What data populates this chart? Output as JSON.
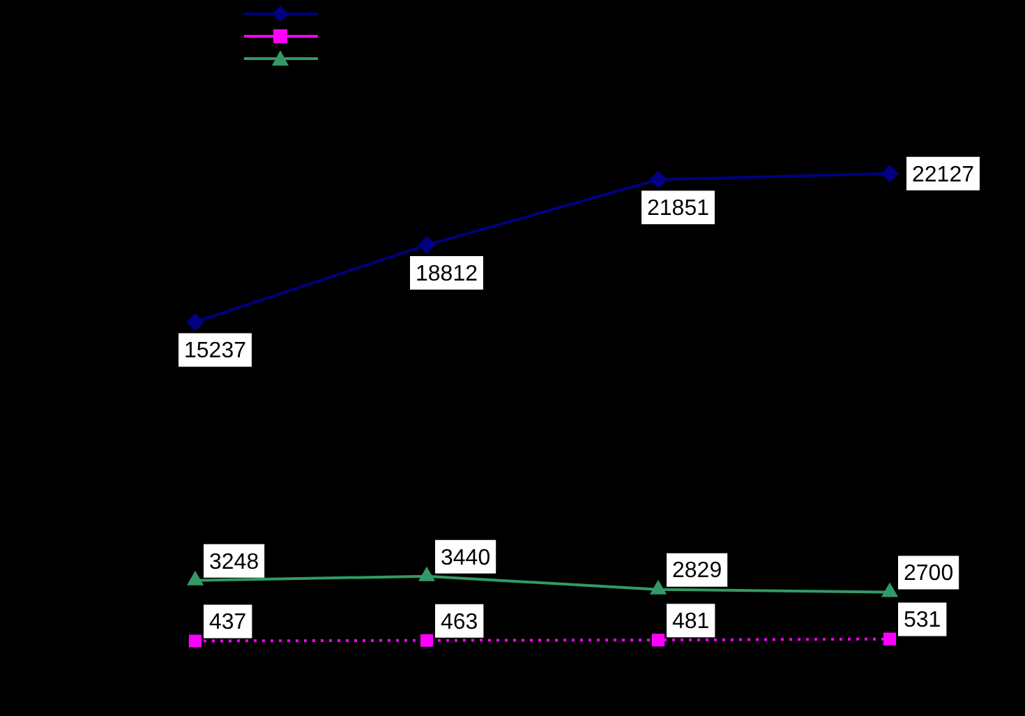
{
  "chart_data": {
    "type": "line",
    "categories": [
      null,
      null,
      null,
      null
    ],
    "series": [
      {
        "color": "#000080",
        "marker": "diamond",
        "line_style": "solid",
        "values": [
          15237,
          18812,
          21851,
          22127
        ]
      },
      {
        "color": "#ff00ff",
        "marker": "square",
        "line_style": "dotted",
        "values": [
          437,
          463,
          481,
          531
        ]
      },
      {
        "color": "#339966",
        "marker": "triangle",
        "line_style": "solid",
        "values": [
          3248,
          3440,
          2829,
          2700
        ]
      }
    ],
    "data_labels": true
  }
}
